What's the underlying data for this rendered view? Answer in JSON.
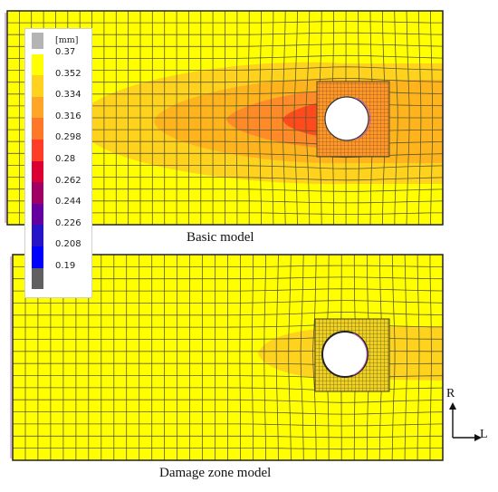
{
  "legend": {
    "unit": "[mm]",
    "levels": [
      "0.37",
      "0.352",
      "0.334",
      "0.316",
      "0.298",
      "0.28",
      "0.262",
      "0.244",
      "0.226",
      "0.208",
      "0.19"
    ],
    "colors": [
      "#b4b4b4",
      "#ffff00",
      "#ffd21e",
      "#ffa528",
      "#ff7828",
      "#ff3c28",
      "#dc0032",
      "#a00064",
      "#6400a0",
      "#2814c8",
      "#0000ff",
      "#606060"
    ]
  },
  "models": {
    "basic": {
      "caption": "Basic model"
    },
    "damage": {
      "caption": "Damage zone model"
    }
  },
  "axes": {
    "vertical": "R",
    "horizontal": "L"
  },
  "colors": {
    "plate": "#ffff00",
    "band_outer": "#ffd21e",
    "band_mid": "#ffb41e",
    "band_inner": "#ff7828",
    "band_core": "#ff3c1e",
    "mesh": "#5a5a2a",
    "hole": "#ffffff"
  }
}
